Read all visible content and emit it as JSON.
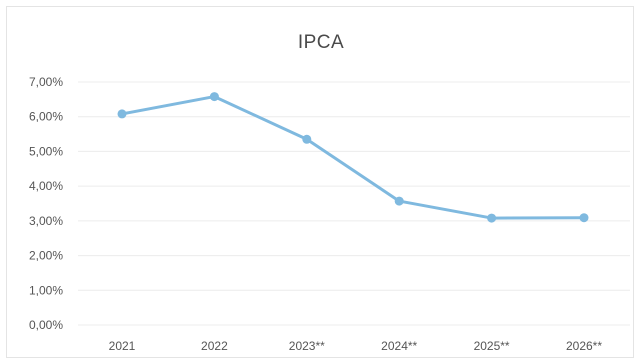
{
  "chart_data": {
    "type": "line",
    "title": "IPCA",
    "categories": [
      "2021",
      "2022",
      "2023**",
      "2024**",
      "2025**",
      "2026**"
    ],
    "series": [
      {
        "values": [
          6.08,
          6.58,
          5.35,
          3.57,
          3.08,
          3.09
        ],
        "color": "#7fb9df"
      }
    ],
    "ylim": [
      0,
      7
    ],
    "y_ticks": [
      0,
      1,
      2,
      3,
      4,
      5,
      6,
      7
    ],
    "y_tick_labels": [
      "0,00%",
      "1,00%",
      "2,00%",
      "3,00%",
      "4,00%",
      "5,00%",
      "6,00%",
      "7,00%"
    ],
    "gridlines": true,
    "legend": "none",
    "gridline_color": "#ececec",
    "text_color": "#555555"
  }
}
